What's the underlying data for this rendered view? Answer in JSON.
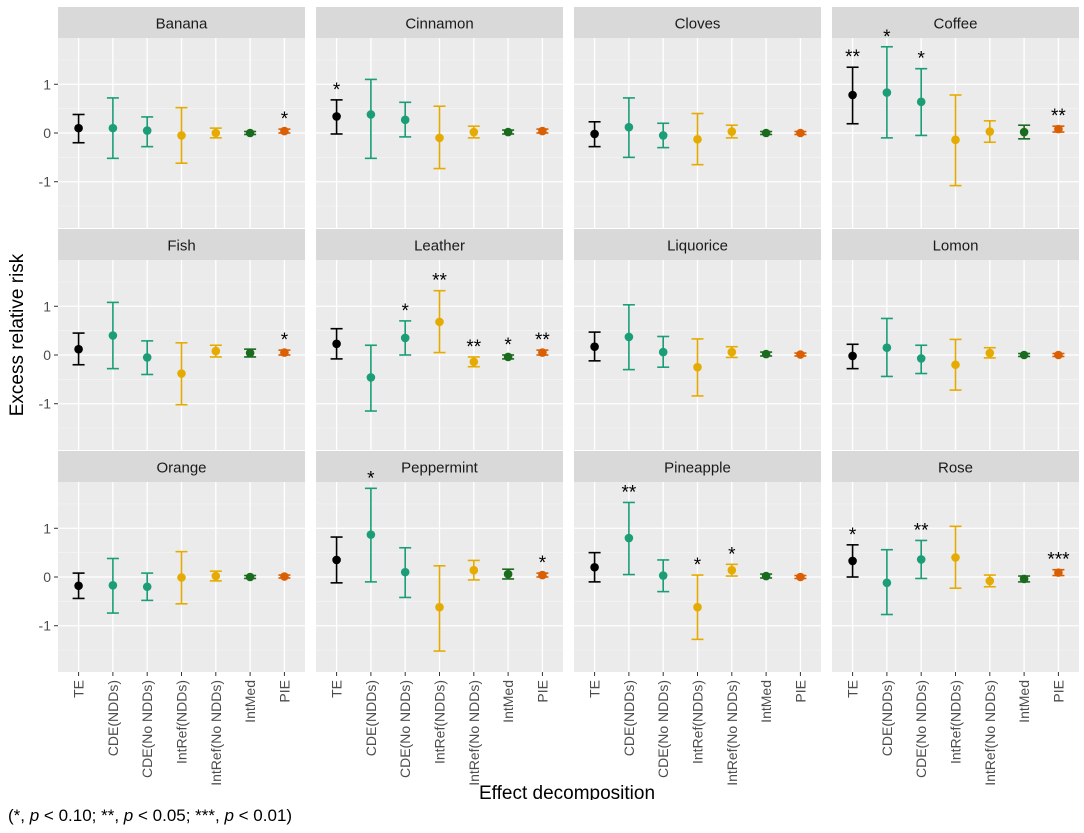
{
  "chart_data": {
    "type": "errorbar",
    "title": "",
    "xlabel": "Effect decomposition",
    "ylabel": "Excess relative risk",
    "ylim": [
      -1.95,
      1.95
    ],
    "yticks": [
      -1,
      0,
      1
    ],
    "ytick_labels": [
      "-1",
      "0",
      "1"
    ],
    "categories": [
      "TE",
      "CDE(NDDs)",
      "CDE(No NDDs)",
      "IntRef(NDDs)",
      "IntRef(No NDDs)",
      "IntMed",
      "PIE"
    ],
    "category_colors": [
      "#000000",
      "#1b9e77",
      "#1b9e77",
      "#e6ab02",
      "#e6ab02",
      "#1b6b1f",
      "#d95f02"
    ],
    "footnote": {
      "open": "(*, ",
      "p1": "p",
      "t1": " < 0.10; **, ",
      "p2": "p",
      "t2": " < 0.05; ***, ",
      "p3": "p",
      "t3": " < 0.01)"
    },
    "panels": [
      {
        "name": "Banana",
        "est": [
          0.1,
          0.1,
          0.05,
          -0.05,
          0.0,
          0.0,
          0.04
        ],
        "lo": [
          -0.2,
          -0.52,
          -0.28,
          -0.62,
          -0.1,
          -0.03,
          0.0
        ],
        "hi": [
          0.38,
          0.72,
          0.33,
          0.52,
          0.1,
          0.03,
          0.08
        ],
        "sig": [
          "",
          "",
          "",
          "",
          "",
          "",
          "*"
        ]
      },
      {
        "name": "Cinnamon",
        "est": [
          0.34,
          0.38,
          0.27,
          -0.1,
          0.02,
          0.02,
          0.04
        ],
        "lo": [
          -0.02,
          -0.52,
          -0.08,
          -0.73,
          -0.1,
          -0.02,
          0.0
        ],
        "hi": [
          0.68,
          1.1,
          0.63,
          0.55,
          0.14,
          0.06,
          0.08
        ],
        "sig": [
          "*",
          "",
          "",
          "",
          "",
          "",
          ""
        ]
      },
      {
        "name": "Cloves",
        "est": [
          -0.02,
          0.12,
          -0.05,
          -0.13,
          0.03,
          0.0,
          0.0
        ],
        "lo": [
          -0.28,
          -0.5,
          -0.3,
          -0.65,
          -0.1,
          -0.03,
          -0.03
        ],
        "hi": [
          0.23,
          0.72,
          0.2,
          0.4,
          0.16,
          0.03,
          0.03
        ],
        "sig": [
          "",
          "",
          "",
          "",
          "",
          "",
          ""
        ]
      },
      {
        "name": "Coffee",
        "est": [
          0.78,
          0.83,
          0.64,
          -0.14,
          0.03,
          0.02,
          0.08
        ],
        "lo": [
          0.19,
          -0.1,
          -0.05,
          -1.08,
          -0.19,
          -0.12,
          0.02
        ],
        "hi": [
          1.35,
          1.77,
          1.32,
          0.78,
          0.25,
          0.16,
          0.14
        ],
        "sig": [
          "**",
          "*",
          "*",
          "",
          "",
          "",
          "**"
        ]
      },
      {
        "name": "Fish",
        "est": [
          0.12,
          0.4,
          -0.05,
          -0.38,
          0.08,
          0.04,
          0.05
        ],
        "lo": [
          -0.2,
          -0.28,
          -0.4,
          -1.02,
          -0.04,
          -0.04,
          0.0
        ],
        "hi": [
          0.45,
          1.08,
          0.29,
          0.25,
          0.2,
          0.12,
          0.1
        ],
        "sig": [
          "",
          "",
          "",
          "",
          "",
          "",
          "*"
        ]
      },
      {
        "name": "Leather",
        "est": [
          0.23,
          -0.46,
          0.35,
          0.68,
          -0.14,
          -0.04,
          0.05
        ],
        "lo": [
          -0.08,
          -1.15,
          0.0,
          0.05,
          -0.24,
          -0.08,
          0.0
        ],
        "hi": [
          0.54,
          0.2,
          0.7,
          1.32,
          -0.04,
          0.0,
          0.1
        ],
        "sig": [
          "",
          "",
          "*",
          "**",
          "**",
          "*",
          "**"
        ]
      },
      {
        "name": "Liquorice",
        "est": [
          0.17,
          0.37,
          0.06,
          -0.25,
          0.06,
          0.02,
          0.01
        ],
        "lo": [
          -0.12,
          -0.3,
          -0.25,
          -0.84,
          -0.05,
          -0.02,
          -0.02
        ],
        "hi": [
          0.47,
          1.03,
          0.38,
          0.33,
          0.17,
          0.06,
          0.04
        ],
        "sig": [
          "",
          "",
          "",
          "",
          "",
          "",
          ""
        ]
      },
      {
        "name": "Lomon",
        "est": [
          -0.02,
          0.15,
          -0.07,
          -0.2,
          0.04,
          0.0,
          0.0
        ],
        "lo": [
          -0.28,
          -0.44,
          -0.38,
          -0.72,
          -0.06,
          -0.03,
          -0.03
        ],
        "hi": [
          0.22,
          0.75,
          0.2,
          0.32,
          0.15,
          0.03,
          0.03
        ],
        "sig": [
          "",
          "",
          "",
          "",
          "",
          "",
          ""
        ]
      },
      {
        "name": "Orange",
        "est": [
          -0.18,
          -0.17,
          -0.2,
          -0.01,
          0.02,
          0.0,
          0.01
        ],
        "lo": [
          -0.44,
          -0.74,
          -0.48,
          -0.55,
          -0.08,
          -0.03,
          -0.02
        ],
        "hi": [
          0.08,
          0.38,
          0.08,
          0.52,
          0.12,
          0.03,
          0.04
        ],
        "sig": [
          "",
          "",
          "",
          "",
          "",
          "",
          ""
        ]
      },
      {
        "name": "Peppermint",
        "est": [
          0.35,
          0.87,
          0.1,
          -0.62,
          0.14,
          0.06,
          0.04
        ],
        "lo": [
          -0.12,
          -0.1,
          -0.42,
          -1.52,
          -0.06,
          -0.04,
          0.0
        ],
        "hi": [
          0.82,
          1.82,
          0.6,
          0.23,
          0.34,
          0.16,
          0.08
        ],
        "sig": [
          "",
          "*",
          "",
          "",
          "",
          "",
          "*"
        ]
      },
      {
        "name": "Pineapple",
        "est": [
          0.2,
          0.8,
          0.03,
          -0.62,
          0.14,
          0.02,
          0.0
        ],
        "lo": [
          -0.1,
          0.05,
          -0.3,
          -1.28,
          0.02,
          -0.02,
          -0.03
        ],
        "hi": [
          0.5,
          1.53,
          0.35,
          0.04,
          0.26,
          0.06,
          0.03
        ],
        "sig": [
          "",
          "**",
          "",
          "*",
          "*",
          "",
          ""
        ]
      },
      {
        "name": "Rose",
        "est": [
          0.33,
          -0.12,
          0.36,
          0.4,
          -0.08,
          -0.04,
          0.09
        ],
        "lo": [
          0.0,
          -0.77,
          -0.03,
          -0.23,
          -0.2,
          -0.1,
          0.03
        ],
        "hi": [
          0.66,
          0.56,
          0.75,
          1.04,
          0.04,
          0.02,
          0.15
        ],
        "sig": [
          "*",
          "",
          "**",
          "",
          "",
          "",
          "***"
        ]
      }
    ]
  }
}
